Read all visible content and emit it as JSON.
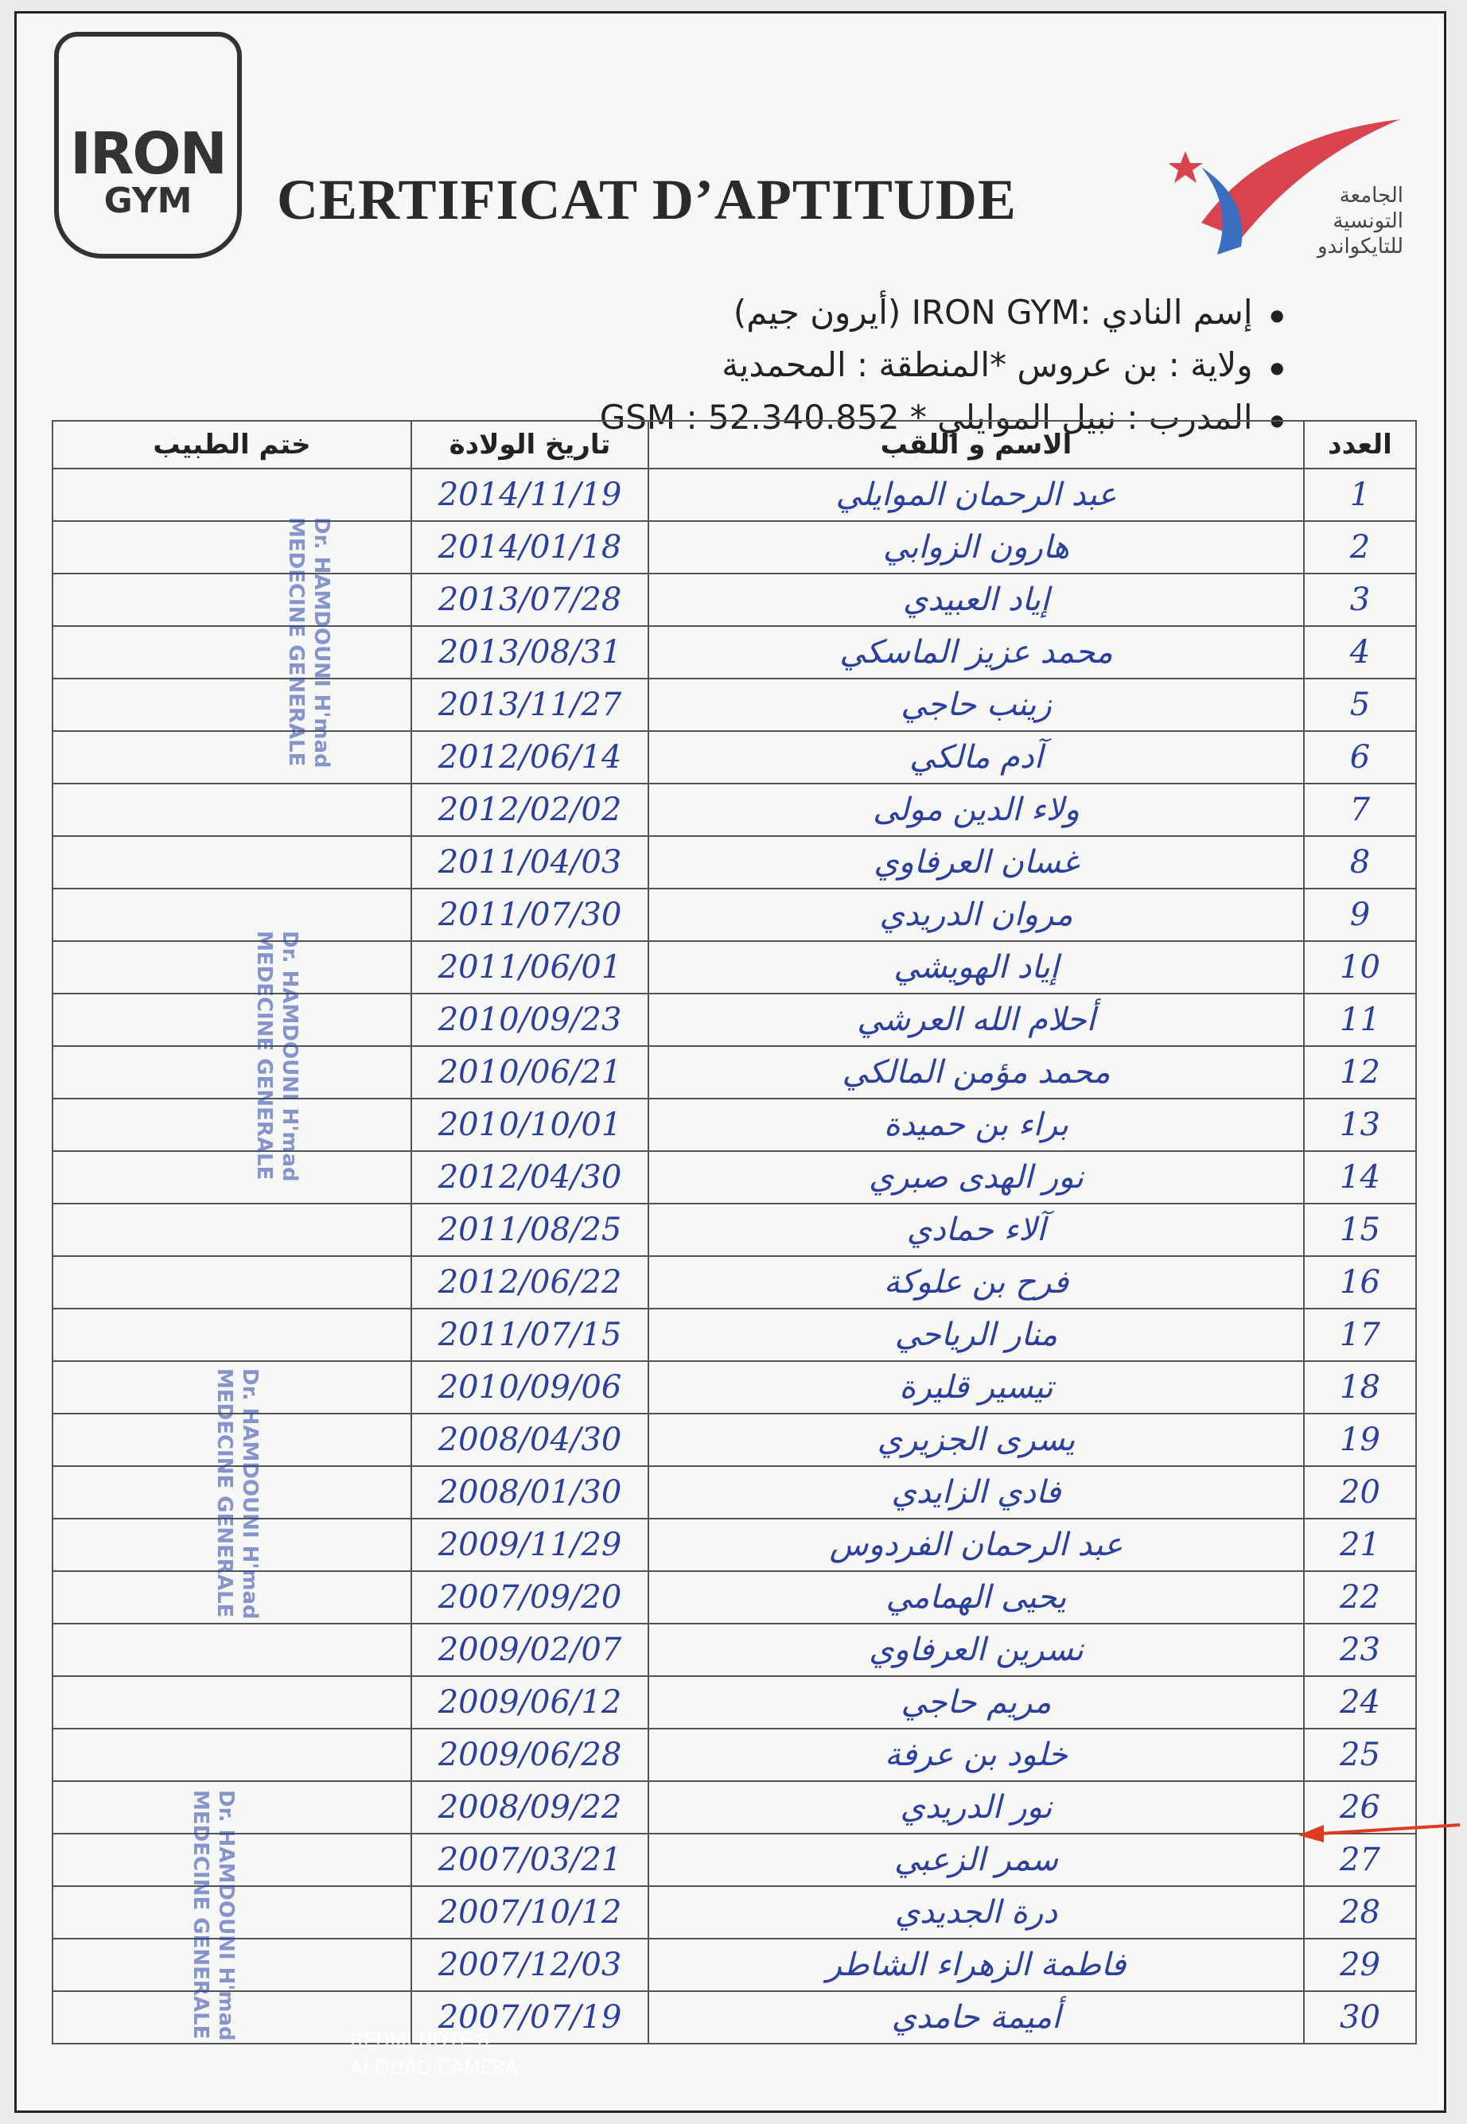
{
  "header": {
    "logo": [
      "IRON",
      "GYM"
    ],
    "title": "CERTIFICAT D’APTITUDE",
    "federation": [
      "الجامعة",
      "التونسية",
      "للتايكواندو"
    ]
  },
  "info": [
    "إسم النادي :IRON GYM (أيرون جيم)",
    "ولاية : بن عروس  *المنطقة : المحمدية",
    "المدرب : نبيل الموايلي * GSM : 52.340.852"
  ],
  "table": {
    "headers": [
      "العدد",
      "الاسم و اللقب",
      "تاريخ الولادة",
      "ختم الطبيب"
    ],
    "rows": [
      [
        1,
        "عبد الرحمان الموايلي",
        "2014/11/19"
      ],
      [
        2,
        "هارون الزوابي",
        "2014/01/18"
      ],
      [
        3,
        "إياد العبيدي",
        "2013/07/28"
      ],
      [
        4,
        "محمد عزيز الماسكي",
        "2013/08/31"
      ],
      [
        5,
        "زينب حاجي",
        "2013/11/27"
      ],
      [
        6,
        "آدم مالكي",
        "2012/06/14"
      ],
      [
        7,
        "ولاء الدين مولى",
        "2012/02/02"
      ],
      [
        8,
        "غسان العرفاوي",
        "2011/04/03"
      ],
      [
        9,
        "مروان الدريدي",
        "2011/07/30"
      ],
      [
        10,
        "إياد الهويشي",
        "2011/06/01"
      ],
      [
        11,
        "أحلام الله العرشي",
        "2010/09/23"
      ],
      [
        12,
        "محمد مؤمن المالكي",
        "2010/06/21"
      ],
      [
        13,
        "براء بن حميدة",
        "2010/10/01"
      ],
      [
        14,
        "نور الهدى صبري",
        "2012/04/30"
      ],
      [
        15,
        "آلاء حمادي",
        "2011/08/25"
      ],
      [
        16,
        "فرح بن علوكة",
        "2012/06/22"
      ],
      [
        17,
        "منار الرياحي",
        "2011/07/15"
      ],
      [
        18,
        "تيسير قليرة",
        "2010/09/06"
      ],
      [
        19,
        "يسرى الجزيري",
        "2008/04/30"
      ],
      [
        20,
        "فادي الزايدي",
        "2008/01/30"
      ],
      [
        21,
        "عبد الرحمان الفردوس",
        "2009/11/29"
      ],
      [
        22,
        "يحيى الهمامي",
        "2007/09/20"
      ],
      [
        23,
        "نسرين العرفاوي",
        "2009/02/07"
      ],
      [
        24,
        "مريم حاجي",
        "2009/06/12"
      ],
      [
        25,
        "خلود بن عرفة",
        "2009/06/28"
      ],
      [
        26,
        "نور الدريدي",
        "2008/09/22"
      ],
      [
        27,
        "سمر الزعبي",
        "2007/03/21"
      ],
      [
        28,
        "درة الجديدي",
        "2007/10/12"
      ],
      [
        29,
        "فاطمة الزهراء الشاطر",
        "2007/12/03"
      ],
      [
        30,
        "أميمة حامدي",
        "2007/07/19"
      ]
    ]
  },
  "stamps": [
    [
      "Dr. HAMDOUNI H'mad",
      "MEDECINE GENERALE"
    ],
    [
      "Dr. HAMDOUNI H'mad",
      "MEDECINE GENERALE"
    ],
    [
      "Dr. HAMDOUNI H'mad",
      "MEDECINE GENERALE"
    ],
    [
      "Dr. HAMDOUNI H'mad",
      "MEDECINE GENERALE"
    ]
  ],
  "watermark": [
    "REDMI NOTE 8",
    "AI QUAD CAMERA"
  ]
}
